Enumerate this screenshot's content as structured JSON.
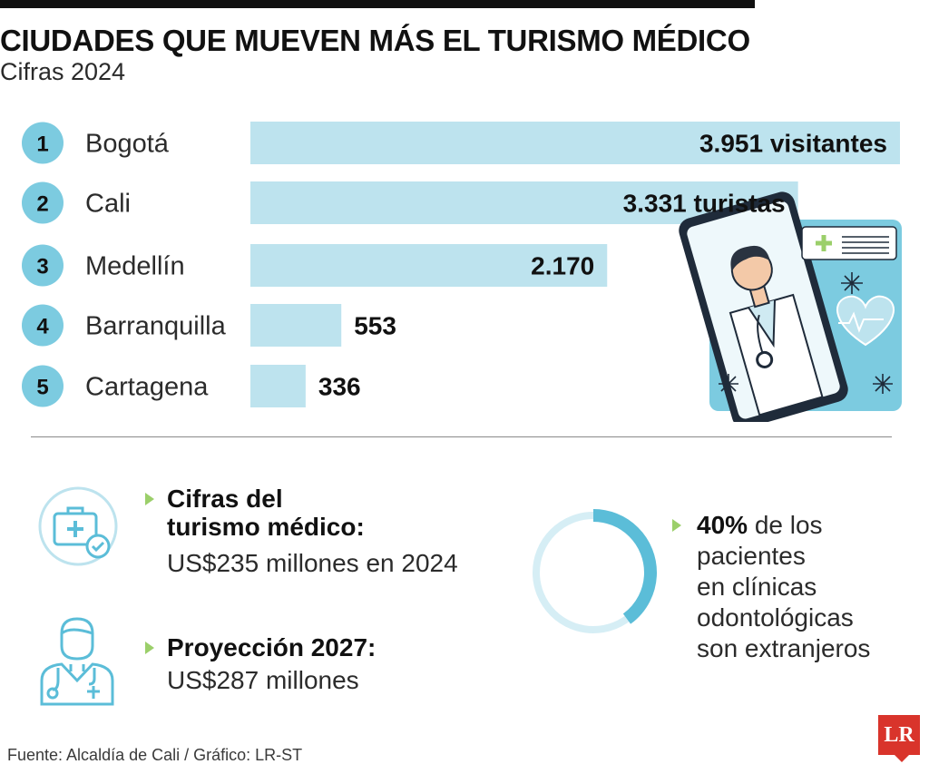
{
  "header": {
    "title": "CIUDADES QUE MUEVEN MÁS EL TURISMO MÉDICO",
    "subtitle": "Cifras 2024"
  },
  "chart_data": {
    "type": "bar",
    "orientation": "horizontal",
    "categories": [
      "Bogotá",
      "Cali",
      "Medellín",
      "Barranquilla",
      "Cartagena"
    ],
    "ranks": [
      "1",
      "2",
      "3",
      "4",
      "5"
    ],
    "values": [
      3951,
      3331,
      2170,
      553,
      336
    ],
    "value_labels": [
      "3.951 visitantes",
      "3.331 turistas",
      "2.170",
      "553",
      "336"
    ],
    "title": "CIUDADES QUE MUEVEN MÁS EL TURISMO MÉDICO",
    "subtitle": "Cifras 2024",
    "xlabel": "",
    "ylabel": "",
    "xlim": [
      0,
      3951
    ],
    "grid": false,
    "legend": "none",
    "bar_color": "#bde3ee",
    "rank_circle_color": "#7ccbe0"
  },
  "stats": {
    "figures": {
      "head_line1": "Cifras del",
      "head_line2": "turismo médico:",
      "body": "US$235 millones en 2024"
    },
    "projection": {
      "head": "Proyección 2027:",
      "body": "US$287 millones"
    },
    "dental": {
      "percent": 40,
      "percent_label": "40%",
      "text_line1": " de los",
      "text_line2": "pacientes",
      "text_line3": "en clínicas",
      "text_line4": "odontológicas",
      "text_line5": "son extranjeros"
    }
  },
  "icons": {
    "medical-kit": "medical-kit-icon",
    "doctor": "doctor-icon",
    "phone-doctor": "phone-doctor-illustration",
    "bullet": "triangle-bullet-icon"
  },
  "colors": {
    "accent_light": "#bde3ee",
    "accent": "#7ccbe0",
    "accent_strong": "#5bbdd8",
    "bullet_green": "#9bcf6a",
    "brand_red": "#d9342b"
  },
  "footer": {
    "source": "Fuente: Alcaldía de Cali / Gráfico: LR-ST",
    "logo": "LR"
  }
}
